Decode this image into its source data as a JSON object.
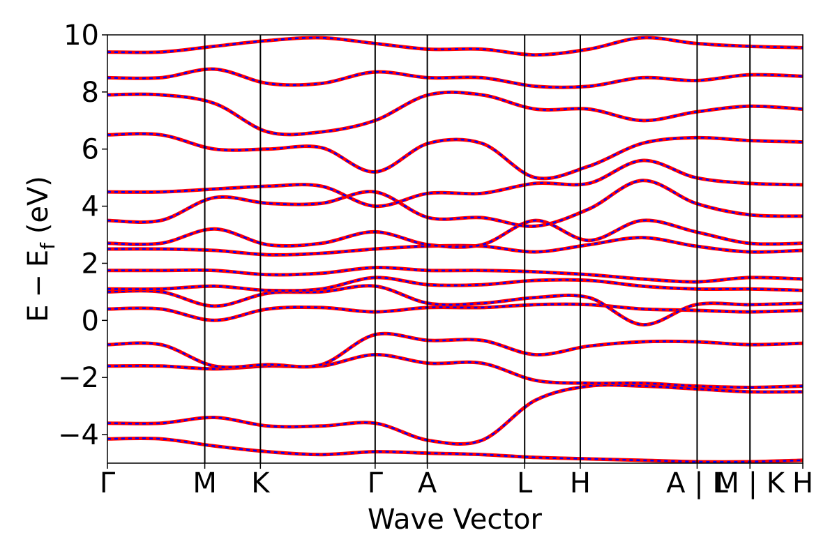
{
  "chart_data": {
    "type": "line",
    "xlabel": "Wave Vector",
    "ylabel_parts": {
      "e": "E",
      "minus": "−",
      "ef": "E",
      "sub": "f",
      "unit": " (eV)"
    },
    "ylim": [
      -5,
      10
    ],
    "yticks": [
      -4,
      -2,
      0,
      2,
      4,
      6,
      8,
      10
    ],
    "ytick_labels": [
      "−4",
      "−2",
      "0",
      "2",
      "4",
      "6",
      "8",
      "10"
    ],
    "kpath": {
      "positions": [
        0,
        0.14,
        0.22,
        0.385,
        0.46,
        0.6,
        0.68,
        0.848,
        0.924,
        1.0
      ],
      "labels": [
        "Γ",
        "M",
        "K",
        "Γ",
        "A",
        "L",
        "H",
        "A | L",
        "M | K",
        "H"
      ]
    },
    "series_style": [
      {
        "role": "primary",
        "color": "#ff0000",
        "dash": "solid"
      },
      {
        "role": "overlay",
        "color": "#0000ff",
        "dash": "dashed"
      }
    ],
    "bands": [
      [
        -4.15,
        -4.15,
        -4.4,
        -4.6,
        -4.7,
        -4.6,
        -4.65,
        -4.7,
        -4.8,
        -4.85,
        -4.9,
        -4.95,
        -4.95,
        -4.9
      ],
      [
        -3.6,
        -3.6,
        -3.4,
        -3.7,
        -3.7,
        -3.6,
        -4.2,
        -4.2,
        -2.8,
        -2.3,
        -2.3,
        -2.4,
        -2.5,
        -2.5
      ],
      [
        -1.6,
        -1.6,
        -1.7,
        -1.6,
        -1.6,
        -1.2,
        -1.5,
        -1.5,
        -2.1,
        -2.2,
        -2.2,
        -2.3,
        -2.35,
        -2.3
      ],
      [
        -0.85,
        -0.85,
        -1.6,
        -1.55,
        -1.55,
        -0.5,
        -0.7,
        -0.7,
        -1.2,
        -0.9,
        -0.75,
        -0.75,
        -0.85,
        -0.8
      ],
      [
        0.4,
        0.4,
        0.0,
        0.4,
        0.45,
        0.3,
        0.45,
        0.45,
        0.55,
        0.55,
        0.4,
        0.35,
        0.3,
        0.35
      ],
      [
        1.0,
        1.0,
        0.5,
        0.95,
        1.0,
        1.2,
        0.6,
        0.6,
        0.8,
        0.8,
        -0.15,
        0.55,
        0.55,
        0.6
      ],
      [
        1.1,
        1.1,
        1.2,
        1.05,
        1.1,
        1.5,
        1.25,
        1.25,
        1.4,
        1.4,
        1.2,
        1.1,
        1.1,
        1.05
      ],
      [
        1.75,
        1.75,
        1.75,
        1.6,
        1.65,
        1.85,
        1.75,
        1.75,
        1.7,
        1.6,
        1.45,
        1.35,
        1.5,
        1.45
      ],
      [
        2.5,
        2.5,
        2.45,
        2.3,
        2.35,
        2.5,
        2.6,
        2.6,
        2.4,
        2.65,
        2.9,
        2.6,
        2.4,
        2.45
      ],
      [
        2.7,
        2.7,
        3.2,
        2.65,
        2.7,
        3.1,
        2.65,
        2.65,
        3.5,
        2.8,
        3.5,
        3.1,
        2.7,
        2.7
      ],
      [
        3.5,
        3.5,
        4.3,
        4.1,
        4.1,
        4.5,
        3.6,
        3.6,
        3.3,
        3.9,
        4.9,
        4.1,
        3.7,
        3.65
      ],
      [
        4.5,
        4.5,
        4.6,
        4.7,
        4.7,
        4.0,
        4.45,
        4.45,
        4.8,
        4.8,
        5.6,
        5.0,
        4.8,
        4.75
      ],
      [
        6.5,
        6.5,
        6.0,
        6.0,
        6.05,
        5.2,
        6.2,
        6.2,
        5.0,
        5.4,
        6.2,
        6.4,
        6.3,
        6.25
      ],
      [
        7.9,
        7.9,
        7.6,
        6.6,
        6.6,
        7.0,
        7.9,
        7.9,
        7.4,
        7.4,
        7.0,
        7.3,
        7.5,
        7.4
      ],
      [
        8.5,
        8.5,
        8.8,
        8.3,
        8.3,
        8.7,
        8.5,
        8.5,
        8.2,
        8.2,
        8.5,
        8.4,
        8.6,
        8.55
      ],
      [
        9.4,
        9.4,
        9.6,
        9.8,
        9.9,
        9.7,
        9.5,
        9.5,
        9.3,
        9.5,
        9.9,
        9.7,
        9.6,
        9.55
      ]
    ]
  }
}
